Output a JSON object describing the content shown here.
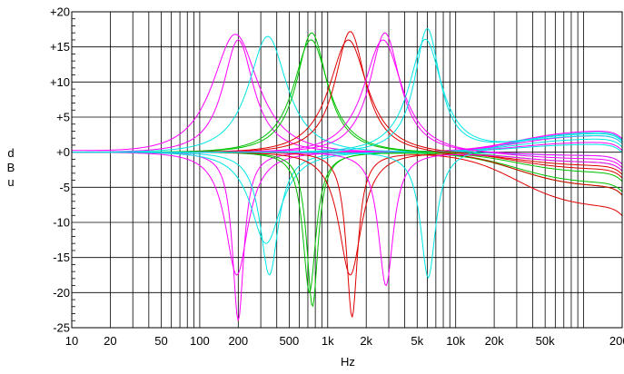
{
  "chart_data": {
    "type": "line",
    "xlabel": "Hz",
    "ylabel": [
      "d",
      "B",
      "u"
    ],
    "xscale": "log",
    "xlim": [
      10,
      200000
    ],
    "ylim": [
      -25,
      20
    ],
    "grid": true,
    "x_tick_labels": [
      {
        "value": 10,
        "label": "10"
      },
      {
        "value": 20,
        "label": "20"
      },
      {
        "value": 50,
        "label": "50"
      },
      {
        "value": 100,
        "label": "100"
      },
      {
        "value": 200,
        "label": "200"
      },
      {
        "value": 500,
        "label": "500"
      },
      {
        "value": 1000,
        "label": "1k"
      },
      {
        "value": 2000,
        "label": "2k"
      },
      {
        "value": 5000,
        "label": "5k"
      },
      {
        "value": 10000,
        "label": "10k"
      },
      {
        "value": 20000,
        "label": "20k"
      },
      {
        "value": 50000,
        "label": "50k"
      },
      {
        "value": 200000,
        "label": "200k"
      }
    ],
    "y_tick_labels": [
      {
        "value": 20,
        "label": "+20"
      },
      {
        "value": 15,
        "label": "+15"
      },
      {
        "value": 10,
        "label": "+10"
      },
      {
        "value": 5,
        "label": "+5"
      },
      {
        "value": 0,
        "label": "+0"
      },
      {
        "value": -5,
        "label": "-5"
      },
      {
        "value": -10,
        "label": "-10"
      },
      {
        "value": -15,
        "label": "-15"
      },
      {
        "value": -20,
        "label": "-20"
      },
      {
        "value": -25,
        "label": "-25"
      }
    ],
    "series": [
      {
        "color": "#ff00ff",
        "f0": 190,
        "gain": 16.8,
        "q": 1.0,
        "hf": 2.5,
        "lf": 0.3
      },
      {
        "color": "#ff00ff",
        "f0": 200,
        "gain": -24.0,
        "q": 4.0,
        "hf": 3.0,
        "lf": 0.0
      },
      {
        "color": "#ff00ff",
        "f0": 195,
        "gain": -17.5,
        "q": 2.0,
        "hf": 1.5,
        "lf": 0.0
      },
      {
        "color": "#ff00ff",
        "f0": 200,
        "gain": 16.0,
        "q": 1.5,
        "hf": 3.2,
        "lf": 0.0
      },
      {
        "color": "#00e5e5",
        "f0": 340,
        "gain": 16.5,
        "q": 1.2,
        "hf": 2.0,
        "lf": 0.0
      },
      {
        "color": "#00e5e5",
        "f0": 350,
        "gain": -17.5,
        "q": 2.5,
        "hf": -0.5,
        "lf": 0.0
      },
      {
        "color": "#00e5e5",
        "f0": 330,
        "gain": -13.0,
        "q": 1.5,
        "hf": 1.2,
        "lf": 0.0
      },
      {
        "color": "#00c000",
        "f0": 750,
        "gain": 17.0,
        "q": 1.5,
        "hf": -3.0,
        "lf": 0.0
      },
      {
        "color": "#00c000",
        "f0": 760,
        "gain": -22.0,
        "q": 4.0,
        "hf": -5.0,
        "lf": 0.0
      },
      {
        "color": "#00c000",
        "f0": 740,
        "gain": 16.0,
        "q": 1.3,
        "hf": -1.5,
        "lf": 0.0
      },
      {
        "color": "#00c000",
        "f0": 720,
        "gain": -20.0,
        "q": 3.5,
        "hf": -4.5,
        "lf": 0.0
      },
      {
        "color": "#e00000",
        "f0": 1500,
        "gain": 17.2,
        "q": 1.5,
        "hf": -5.0,
        "lf": 0.0
      },
      {
        "color": "#e00000",
        "f0": 1550,
        "gain": -23.5,
        "q": 4.0,
        "hf": -8.0,
        "lf": 0.0
      },
      {
        "color": "#e00000",
        "f0": 1500,
        "gain": -17.5,
        "q": 2.0,
        "hf": -2.0,
        "lf": 0.0
      },
      {
        "color": "#e00000",
        "f0": 1450,
        "gain": 16.0,
        "q": 1.2,
        "hf": -2.5,
        "lf": 0.0
      },
      {
        "color": "#ff00ff",
        "f0": 2800,
        "gain": 17.0,
        "q": 1.5,
        "hf": -0.5,
        "lf": 0.0
      },
      {
        "color": "#ff00ff",
        "f0": 2850,
        "gain": -19.0,
        "q": 3.0,
        "hf": -1.5,
        "lf": 0.0
      },
      {
        "color": "#ff00ff",
        "f0": 2700,
        "gain": 16.0,
        "q": 1.2,
        "hf": -1.0,
        "lf": 0.0
      },
      {
        "color": "#00e5e5",
        "f0": 6000,
        "gain": 17.5,
        "q": 1.8,
        "hf": 2.8,
        "lf": 0.0
      },
      {
        "color": "#00e5e5",
        "f0": 6100,
        "gain": -18.0,
        "q": 3.0,
        "hf": 3.0,
        "lf": 0.0
      },
      {
        "color": "#00e5e5",
        "f0": 5800,
        "gain": 16.0,
        "q": 1.4,
        "hf": 2.5,
        "lf": 0.0
      }
    ]
  }
}
